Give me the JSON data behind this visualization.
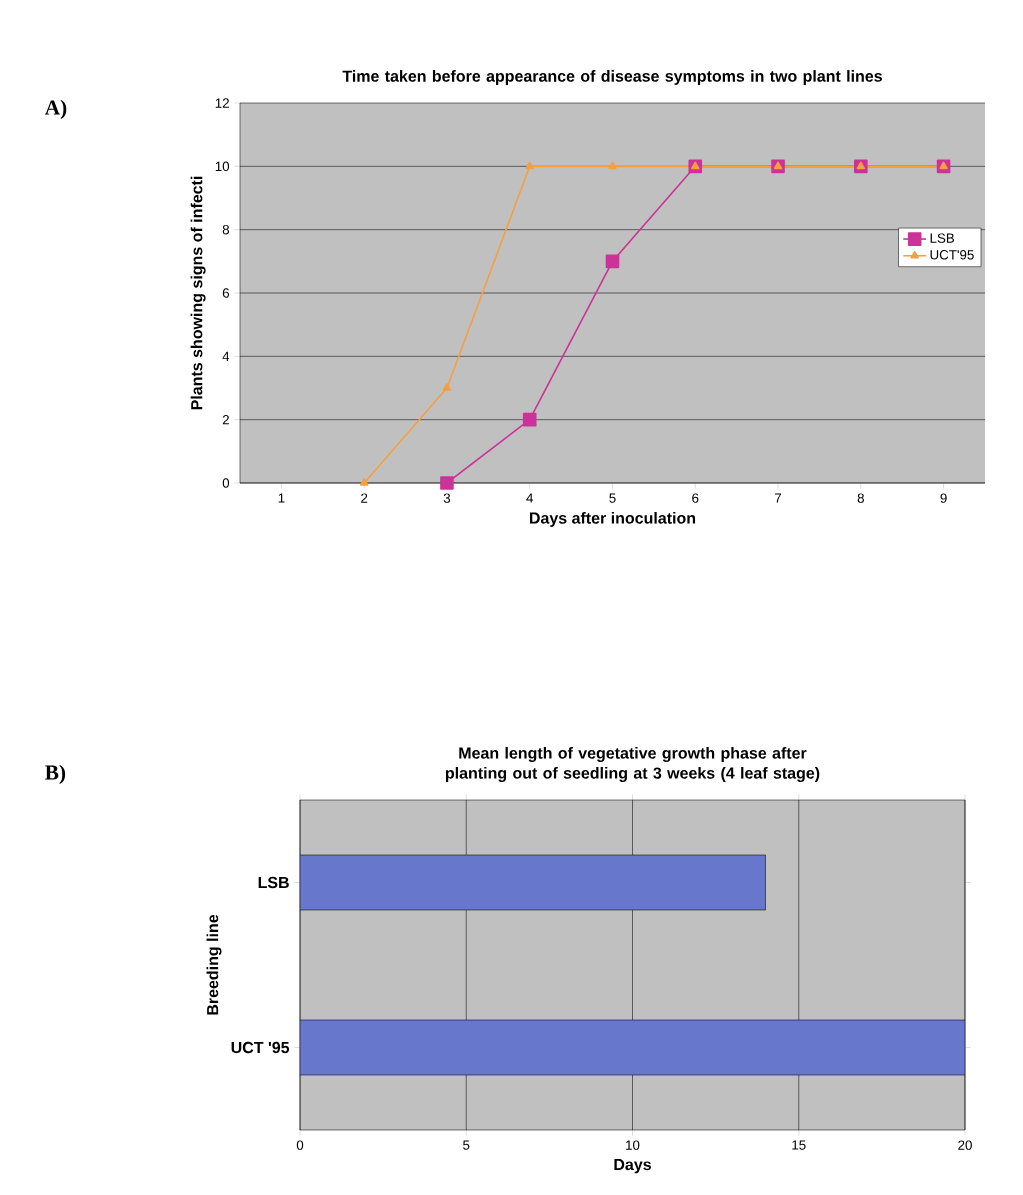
{
  "chart_data": [
    {
      "type": "line",
      "title": "Time taken before appearance of disease symptoms in two plant lines",
      "xlabel": "Days after inoculation",
      "ylabel": "Plants showing signs of infecti",
      "annotations": [
        "A)"
      ],
      "categories": [
        "1",
        "2",
        "3",
        "4",
        "5",
        "6",
        "7",
        "8",
        "9"
      ],
      "series": [
        {
          "name": "LSB",
          "color": "#cc3399",
          "marker": "square",
          "values": [
            null,
            null,
            0,
            2,
            7,
            10,
            10,
            10,
            10
          ]
        },
        {
          "name": "UCT'95",
          "color": "#f5a040",
          "marker": "triangle",
          "values": [
            null,
            0,
            3,
            10,
            10,
            10,
            10,
            10,
            10
          ]
        }
      ],
      "ylim": [
        0,
        12
      ],
      "yticks": [
        0,
        2,
        4,
        6,
        8,
        10,
        12
      ],
      "grid": "y",
      "legend": "right",
      "line_style": "solid"
    },
    {
      "type": "bar",
      "orientation": "horizontal",
      "title": "Mean length of vegetative growth phase after planting out of seedling at 3 weeks (4 leaf stage)",
      "xlabel": "Days",
      "ylabel": "Breeding line",
      "annotations": [
        "B)"
      ],
      "categories": [
        "LSB",
        "UCT '95"
      ],
      "values": [
        14,
        20
      ],
      "color": "#6677cc",
      "xlim": [
        0,
        20
      ],
      "xticks": [
        0,
        5,
        10,
        15,
        20
      ],
      "grid": "x"
    }
  ]
}
